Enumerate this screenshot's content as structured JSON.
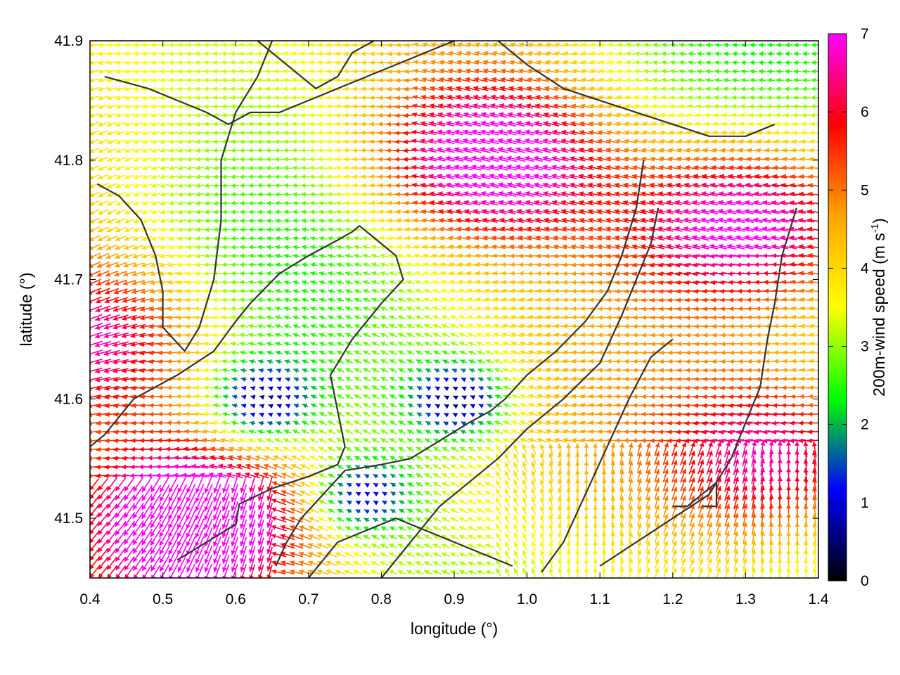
{
  "chart_data": {
    "type": "vector_field",
    "title": "",
    "xlabel": "longitude (°)",
    "ylabel": "latitude (°)",
    "colorbar_label": "200m-wind speed (m s-1)",
    "colorbar_label_parts": {
      "main": "200m-wind speed (m s",
      "superscript": "-1",
      "tail": ")"
    },
    "xlim": [
      0.4,
      1.4
    ],
    "ylim": [
      41.45,
      41.9
    ],
    "xticks": [
      "0.4",
      "0.5",
      "0.6",
      "0.7",
      "0.8",
      "0.9",
      "1.0",
      "1.1",
      "1.2",
      "1.3",
      "1.4"
    ],
    "yticks": [
      "41.5",
      "41.6",
      "41.7",
      "41.8",
      "41.9"
    ],
    "cbar_range": [
      0,
      7
    ],
    "cbar_ticks": [
      "0",
      "1",
      "2",
      "3",
      "4",
      "5",
      "6",
      "7"
    ],
    "colormap": [
      "#000000",
      "#0000ff",
      "#00ff00",
      "#ffff00",
      "#ffa500",
      "#ff0000",
      "#ff00ff"
    ],
    "grid": false,
    "calm_zones": [
      {
        "lon": 0.64,
        "lat": 41.6,
        "speed": 0.6
      },
      {
        "lon": 0.9,
        "lat": 41.6,
        "speed": 0.5
      },
      {
        "lon": 0.78,
        "lat": 41.52,
        "speed": 1.0
      }
    ],
    "strong_zones": [
      {
        "lon": 0.95,
        "lat": 41.8,
        "speed": 7.5
      },
      {
        "lon": 1.3,
        "lat": 41.75,
        "speed": 7.2
      },
      {
        "lon": 0.55,
        "lat": 41.5,
        "speed": 7.5
      },
      {
        "lon": 0.4,
        "lat": 41.65,
        "speed": 6.5
      },
      {
        "lon": 1.35,
        "lat": 41.55,
        "speed": 6.5
      }
    ],
    "contours": [
      [
        [
          0.52,
          41.465
        ],
        [
          0.56,
          41.48
        ],
        [
          0.6,
          41.495
        ],
        [
          0.605,
          41.512
        ],
        [
          0.65,
          41.525
        ],
        [
          0.7,
          41.535
        ],
        [
          0.74,
          41.545
        ],
        [
          0.75,
          41.56
        ],
        [
          0.74,
          41.59
        ],
        [
          0.73,
          41.62
        ],
        [
          0.76,
          41.65
        ],
        [
          0.8,
          41.68
        ],
        [
          0.83,
          41.7
        ],
        [
          0.82,
          41.72
        ],
        [
          0.79,
          41.735
        ],
        [
          0.77,
          41.745
        ],
        [
          0.76,
          41.74
        ],
        [
          0.74,
          41.733
        ],
        [
          0.7,
          41.72
        ],
        [
          0.66,
          41.705
        ],
        [
          0.62,
          41.68
        ],
        [
          0.6,
          41.665
        ],
        [
          0.57,
          41.64
        ],
        [
          0.52,
          41.62
        ],
        [
          0.46,
          41.6
        ],
        [
          0.42,
          41.57
        ],
        [
          0.4,
          41.56
        ]
      ],
      [
        [
          0.655,
          41.46
        ],
        [
          0.67,
          41.48
        ],
        [
          0.69,
          41.5
        ],
        [
          0.72,
          41.52
        ],
        [
          0.75,
          41.54
        ],
        [
          0.8,
          41.545
        ],
        [
          0.84,
          41.55
        ],
        [
          0.88,
          41.565
        ],
        [
          0.92,
          41.58
        ],
        [
          0.95,
          41.59
        ],
        [
          0.97,
          41.6
        ],
        [
          1.0,
          41.62
        ],
        [
          1.04,
          41.64
        ],
        [
          1.08,
          41.665
        ],
        [
          1.11,
          41.69
        ],
        [
          1.13,
          41.72
        ],
        [
          1.15,
          41.76
        ],
        [
          1.16,
          41.8
        ]
      ],
      [
        [
          0.8,
          41.45
        ],
        [
          0.84,
          41.48
        ],
        [
          0.88,
          41.51
        ],
        [
          0.92,
          41.53
        ],
        [
          0.96,
          41.55
        ],
        [
          1.0,
          41.575
        ],
        [
          1.05,
          41.6
        ],
        [
          1.1,
          41.63
        ],
        [
          1.13,
          41.67
        ],
        [
          1.15,
          41.7
        ],
        [
          1.17,
          41.73
        ],
        [
          1.18,
          41.76
        ]
      ],
      [
        [
          1.02,
          41.455
        ],
        [
          1.05,
          41.48
        ],
        [
          1.08,
          41.52
        ],
        [
          1.11,
          41.56
        ],
        [
          1.14,
          41.6
        ],
        [
          1.17,
          41.635
        ],
        [
          1.2,
          41.65
        ]
      ],
      [
        [
          1.1,
          41.46
        ],
        [
          1.15,
          41.48
        ],
        [
          1.2,
          41.5
        ],
        [
          1.25,
          41.52
        ],
        [
          1.28,
          41.55
        ],
        [
          1.3,
          41.58
        ],
        [
          1.32,
          41.61
        ],
        [
          1.33,
          41.65
        ],
        [
          1.34,
          41.68
        ],
        [
          1.35,
          41.72
        ],
        [
          1.37,
          41.76
        ]
      ],
      [
        [
          0.41,
          41.78
        ],
        [
          0.44,
          41.77
        ],
        [
          0.47,
          41.75
        ],
        [
          0.49,
          41.72
        ],
        [
          0.5,
          41.69
        ],
        [
          0.5,
          41.66
        ],
        [
          0.53,
          41.64
        ],
        [
          0.55,
          41.66
        ],
        [
          0.57,
          41.7
        ],
        [
          0.58,
          41.75
        ],
        [
          0.58,
          41.8
        ],
        [
          0.6,
          41.84
        ],
        [
          0.63,
          41.87
        ],
        [
          0.65,
          41.9
        ]
      ],
      [
        [
          0.42,
          41.87
        ],
        [
          0.48,
          41.86
        ],
        [
          0.52,
          41.85
        ],
        [
          0.56,
          41.84
        ],
        [
          0.59,
          41.83
        ],
        [
          0.62,
          41.84
        ],
        [
          0.66,
          41.84
        ],
        [
          0.7,
          41.85
        ],
        [
          0.74,
          41.86
        ],
        [
          0.78,
          41.87
        ],
        [
          0.82,
          41.88
        ],
        [
          0.86,
          41.89
        ],
        [
          0.9,
          41.9
        ]
      ],
      [
        [
          0.63,
          41.9
        ],
        [
          0.67,
          41.88
        ],
        [
          0.71,
          41.86
        ],
        [
          0.74,
          41.87
        ],
        [
          0.76,
          41.89
        ],
        [
          0.79,
          41.9
        ]
      ],
      [
        [
          0.96,
          41.9
        ],
        [
          1.0,
          41.88
        ],
        [
          1.05,
          41.86
        ],
        [
          1.1,
          41.85
        ],
        [
          1.15,
          41.84
        ],
        [
          1.2,
          41.83
        ],
        [
          1.25,
          41.82
        ],
        [
          1.3,
          41.82
        ],
        [
          1.34,
          41.83
        ]
      ],
      [
        [
          1.2,
          41.51
        ],
        [
          1.22,
          41.51
        ],
        [
          1.24,
          41.52
        ],
        [
          1.26,
          41.53
        ],
        [
          1.26,
          41.51
        ],
        [
          1.24,
          41.51
        ]
      ],
      [
        [
          0.7,
          41.45
        ],
        [
          0.74,
          41.48
        ],
        [
          0.78,
          41.49
        ],
        [
          0.82,
          41.5
        ],
        [
          0.86,
          41.49
        ],
        [
          0.9,
          41.48
        ],
        [
          0.94,
          41.47
        ],
        [
          0.98,
          41.46
        ]
      ]
    ]
  }
}
